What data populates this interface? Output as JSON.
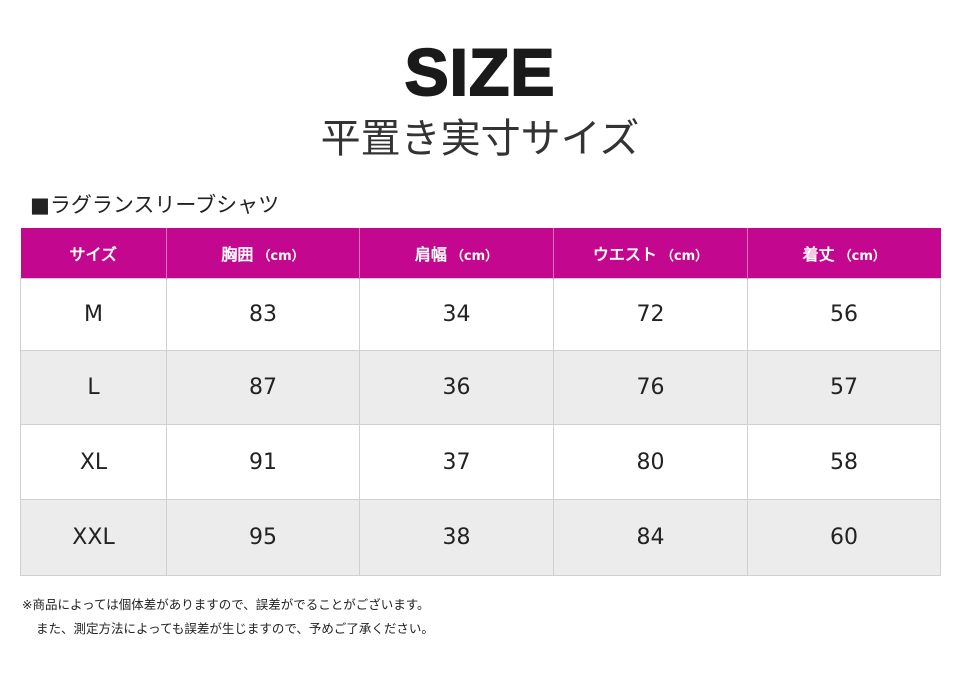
{
  "header": {
    "title": "SIZE",
    "subtitle": "平置き実寸サイズ"
  },
  "section": {
    "title": "■ラグランスリーブシャツ"
  },
  "table": {
    "columns": [
      {
        "label": "サイズ"
      },
      {
        "label": "胸囲",
        "unit": "（cm）"
      },
      {
        "label": "肩幅",
        "unit": "（cm）"
      },
      {
        "label": "ウエスト",
        "unit": "（cm）"
      },
      {
        "label": "着丈",
        "unit": "（cm）"
      }
    ],
    "rows": [
      [
        "M",
        "83",
        "34",
        "72",
        "56"
      ],
      [
        "L",
        "87",
        "36",
        "76",
        "57"
      ],
      [
        "XL",
        "91",
        "37",
        "80",
        "58"
      ],
      [
        "XXL",
        "95",
        "38",
        "84",
        "60"
      ]
    ]
  },
  "notes": [
    "※商品によっては個体差がありますので、誤差がでることがございます。",
    "また、測定方法によっても誤差が生じますので、予めご了承ください。"
  ]
}
